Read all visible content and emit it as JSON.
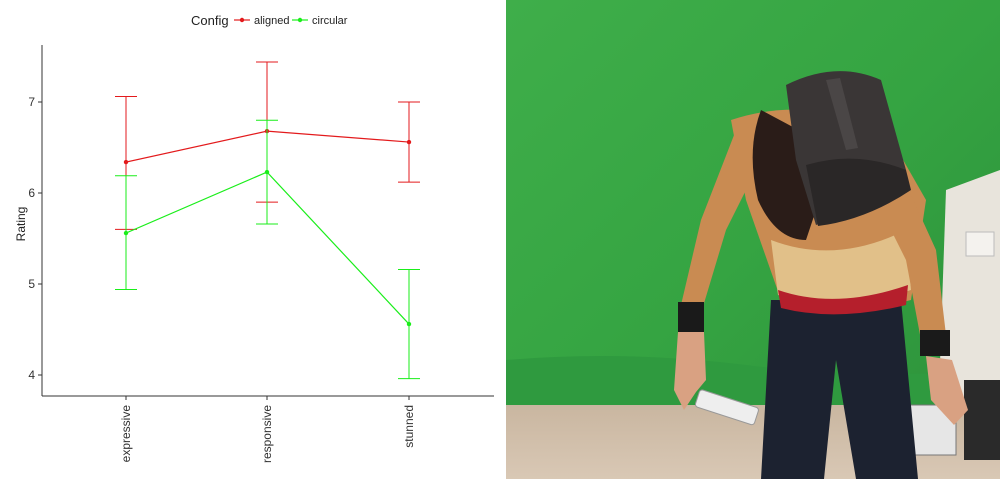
{
  "chart_data": {
    "type": "line",
    "xlabel": "",
    "ylabel": "Rating",
    "legend_title": "Config",
    "legend_position": "top",
    "ylim": [
      3.8,
      7.6
    ],
    "yticks": [
      4,
      5,
      6,
      7
    ],
    "grid": false,
    "categories": [
      "expressive",
      "responsive",
      "stunned"
    ],
    "series": [
      {
        "name": "aligned",
        "color": "#e31a1c",
        "values": [
          6.34,
          6.68,
          6.56
        ],
        "err_low": [
          5.6,
          5.9,
          6.12
        ],
        "err_high": [
          7.06,
          7.44,
          7.0
        ]
      },
      {
        "name": "circular",
        "color": "#1aee1a",
        "values": [
          5.56,
          6.23,
          4.56
        ],
        "err_low": [
          4.94,
          5.66,
          3.96
        ],
        "err_high": [
          6.19,
          6.8,
          5.16
        ]
      }
    ]
  },
  "photo": {
    "subject": "person wearing VR headset in front of green screen",
    "background_color": "#3aa845"
  }
}
